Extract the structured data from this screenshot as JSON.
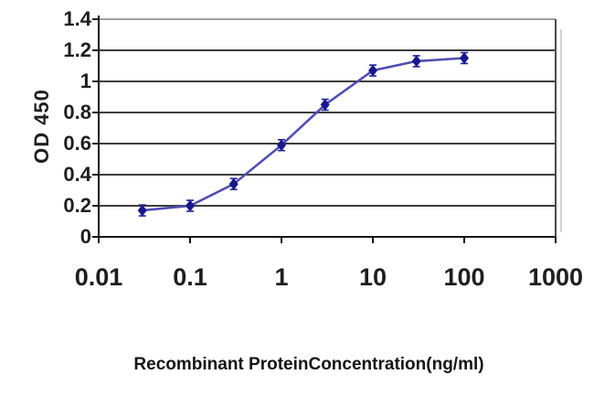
{
  "chart_data": {
    "type": "line",
    "title": "",
    "xlabel": "Recombinant ProteinConcentration(ng/ml)",
    "ylabel": "OD 450",
    "x_scale": "log",
    "xlim": [
      0.01,
      1000
    ],
    "ylim": [
      0,
      1.4
    ],
    "x_ticks": [
      0.01,
      0.1,
      1,
      10,
      100,
      1000
    ],
    "x_tick_labels": [
      "0.01",
      "0.1",
      "1",
      "10",
      "100",
      "1000"
    ],
    "y_ticks": [
      0,
      0.2,
      0.4,
      0.6,
      0.8,
      1,
      1.2,
      1.4
    ],
    "y_tick_labels": [
      "0",
      "0.2",
      "0.4",
      "0.6",
      "0.8",
      "1",
      "1.2",
      "1.4"
    ],
    "grid": "horizontal",
    "legend": "none",
    "series": [
      {
        "name": "OD 450",
        "x": [
          0.03,
          0.1,
          0.3,
          1,
          3,
          10,
          30,
          100
        ],
        "y": [
          0.17,
          0.2,
          0.34,
          0.59,
          0.85,
          1.07,
          1.13,
          1.15
        ],
        "y_err": 0.035,
        "marker": "diamond",
        "marker_color": "#18188c",
        "line_color": "#4e4eb2",
        "error_bar_color": "#20209a"
      }
    ],
    "colors": {
      "gridline": "#3d3d3d",
      "axis": "#151515",
      "plot_top_border": "#9e9e9e",
      "plot_right_border": "#4a4a4a",
      "shadow": "#d4d4d4",
      "background": "#ffffff",
      "text": "#1e1e1e"
    }
  }
}
